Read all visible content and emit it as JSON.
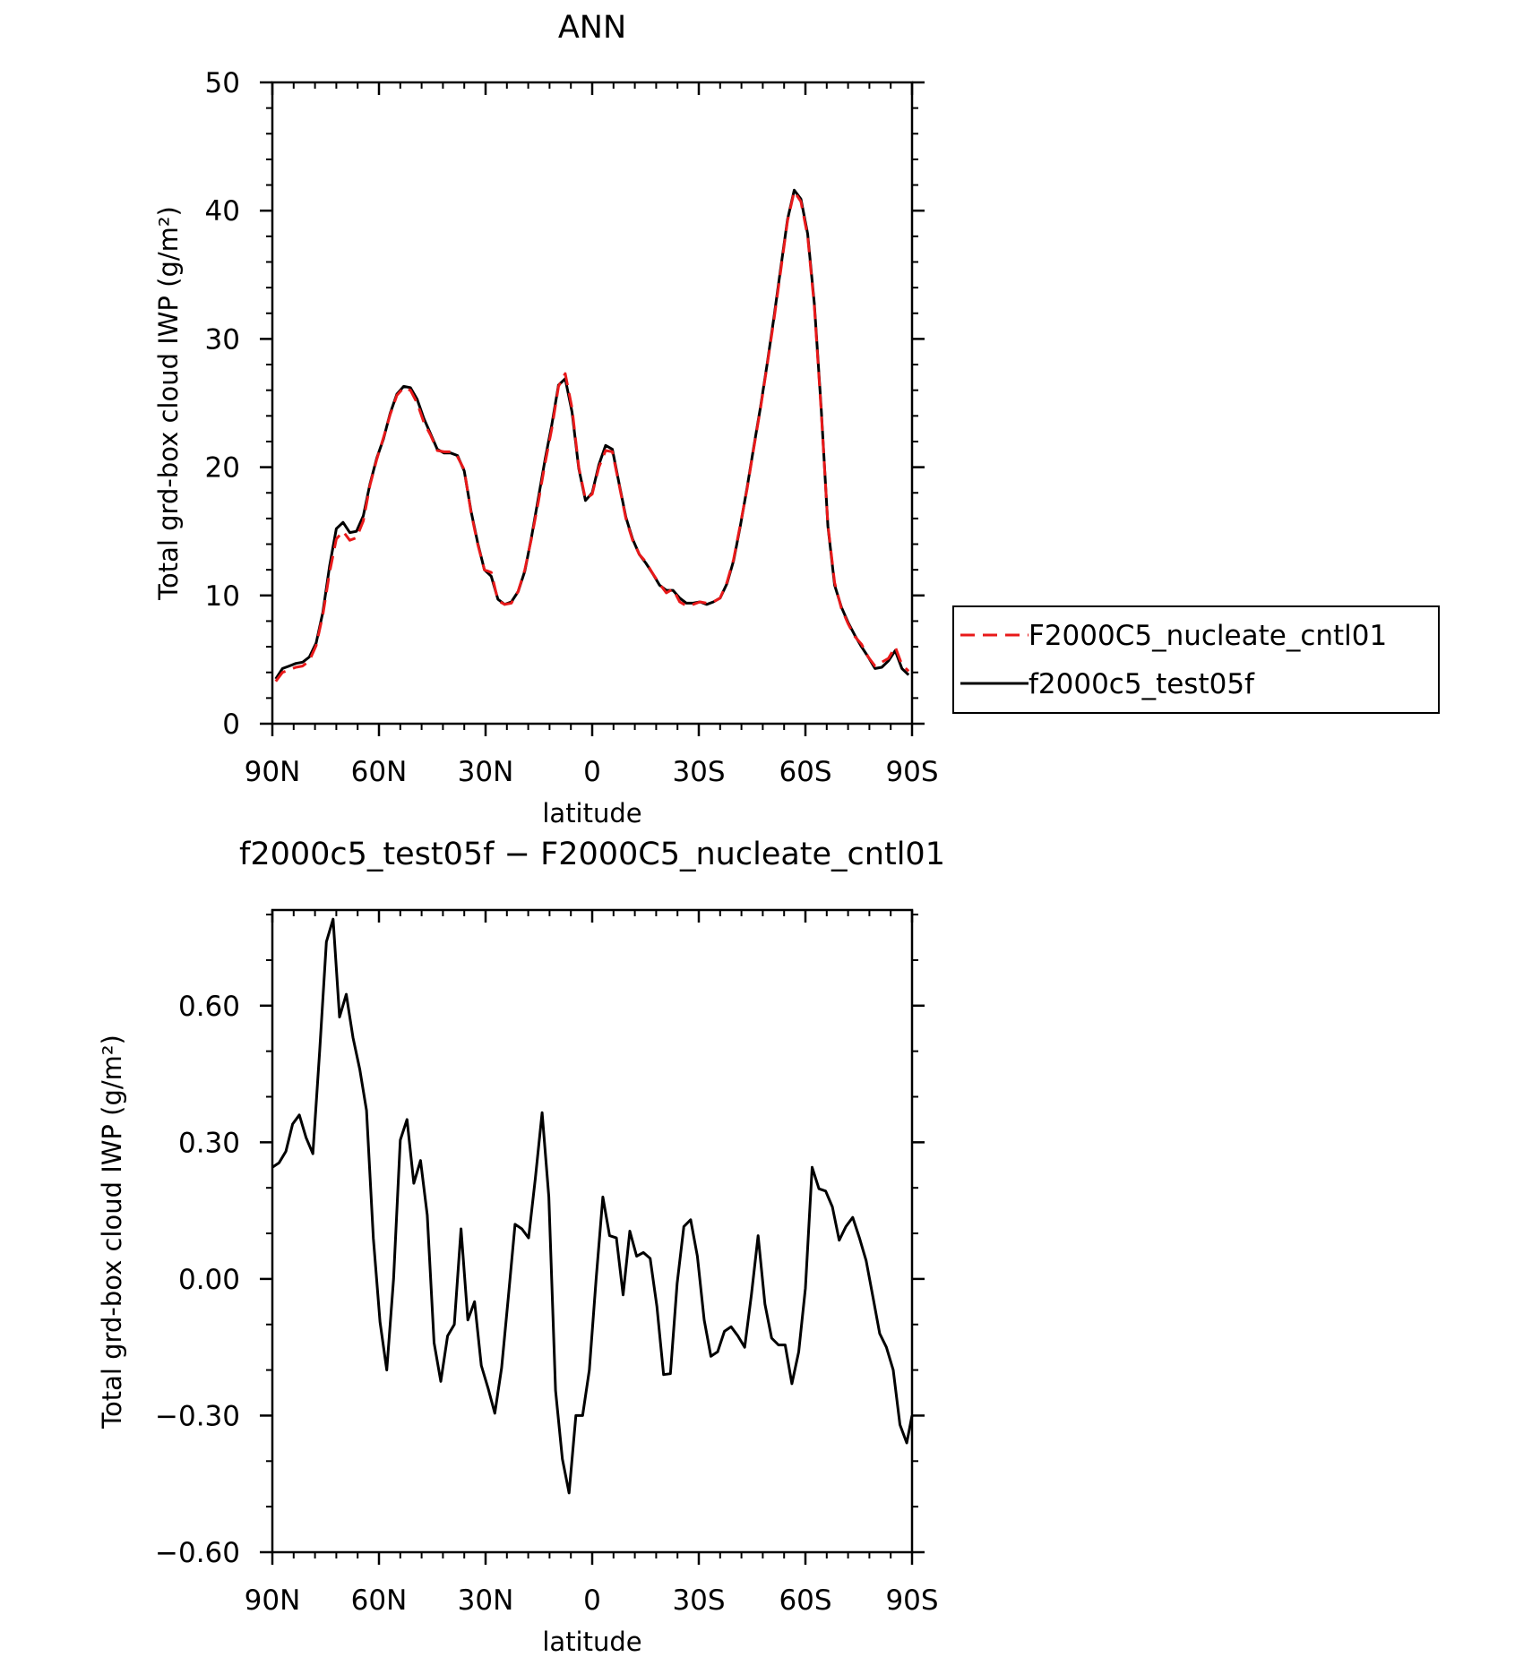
{
  "chart_data": [
    {
      "type": "line",
      "title": "ANN",
      "xlabel": "latitude",
      "ylabel": "Total grd-box cloud IWP (g/m²)",
      "xlim": [
        90,
        -90
      ],
      "ylim": [
        0,
        50
      ],
      "x_ticks": [
        90,
        60,
        30,
        0,
        -30,
        -60,
        -90
      ],
      "x_tick_labels": [
        "90N",
        "60N",
        "30N",
        "0",
        "30S",
        "60S",
        "90S"
      ],
      "y_ticks": [
        0,
        10,
        20,
        30,
        40,
        50
      ],
      "y_tick_labels": [
        "0",
        "10",
        "20",
        "30",
        "40",
        "50"
      ],
      "legend_position": "right",
      "series": [
        {
          "name": "F2000C5_nucleate_cntl01",
          "color": "#e8191a",
          "dash": "dashed",
          "x": [
            89.05,
            87.16,
            85.26,
            83.37,
            81.47,
            79.58,
            77.68,
            75.79,
            73.89,
            72.0,
            70.11,
            68.21,
            66.32,
            64.42,
            62.53,
            60.63,
            58.74,
            56.84,
            54.95,
            53.05,
            51.16,
            49.26,
            47.37,
            45.47,
            43.58,
            41.68,
            39.79,
            37.89,
            36.0,
            34.11,
            32.21,
            30.32,
            28.42,
            26.53,
            24.63,
            22.74,
            20.84,
            18.95,
            17.05,
            15.16,
            13.26,
            11.37,
            9.47,
            7.58,
            5.68,
            3.79,
            1.89,
            0.0,
            -1.89,
            -3.79,
            -5.68,
            -7.58,
            -9.47,
            -11.37,
            -13.26,
            -15.16,
            -17.05,
            -18.95,
            -20.84,
            -22.74,
            -24.63,
            -26.53,
            -28.42,
            -30.32,
            -32.21,
            -34.11,
            -36.0,
            -37.89,
            -39.79,
            -41.68,
            -43.58,
            -45.47,
            -47.37,
            -49.26,
            -51.16,
            -53.05,
            -54.95,
            -56.84,
            -58.74,
            -60.63,
            -62.53,
            -64.42,
            -66.32,
            -68.21,
            -70.11,
            -72.0,
            -73.89,
            -75.79,
            -77.68,
            -79.58,
            -81.47,
            -83.37,
            -85.26,
            -87.16,
            -89.05
          ],
          "y": [
            3.3,
            4.0,
            4.2,
            4.4,
            4.5,
            4.9,
            6.1,
            8.5,
            11.8,
            14.4,
            15.0,
            14.3,
            14.5,
            15.8,
            18.6,
            20.6,
            22.3,
            24.1,
            25.6,
            26.2,
            26.0,
            25.0,
            23.5,
            22.5,
            21.3,
            21.2,
            21.2,
            20.8,
            19.8,
            16.5,
            14.0,
            12.0,
            11.8,
            9.6,
            9.3,
            9.4,
            10.3,
            12.0,
            14.5,
            17.3,
            20.3,
            23.0,
            26.3,
            27.3,
            24.6,
            20.0,
            17.5,
            17.9,
            20.0,
            21.3,
            21.2,
            18.6,
            16.0,
            14.3,
            13.2,
            12.6,
            11.7,
            10.9,
            10.2,
            10.5,
            9.5,
            9.2,
            9.3,
            9.5,
            9.4,
            9.5,
            9.8,
            11.0,
            12.8,
            15.5,
            18.3,
            21.5,
            24.6,
            28.0,
            31.5,
            35.3,
            39.2,
            41.5,
            40.7,
            38.0,
            32.5,
            24.5,
            15.5,
            11.0,
            9.0,
            7.8,
            6.8,
            6.2,
            5.2,
            4.5,
            4.8,
            5.1,
            6.0,
            4.6,
            4.1
          ]
        },
        {
          "name": "f2000c5_test05f",
          "color": "#000000",
          "dash": "solid",
          "x": [
            89.05,
            87.16,
            85.26,
            83.37,
            81.47,
            79.58,
            77.68,
            75.79,
            73.89,
            72.0,
            70.11,
            68.21,
            66.32,
            64.42,
            62.53,
            60.63,
            58.74,
            56.84,
            54.95,
            53.05,
            51.16,
            49.26,
            47.37,
            45.47,
            43.58,
            41.68,
            39.79,
            37.89,
            36.0,
            34.11,
            32.21,
            30.32,
            28.42,
            26.53,
            24.63,
            22.74,
            20.84,
            18.95,
            17.05,
            15.16,
            13.26,
            11.37,
            9.47,
            7.58,
            5.68,
            3.79,
            1.89,
            0.0,
            -1.89,
            -3.79,
            -5.68,
            -7.58,
            -9.47,
            -11.37,
            -13.26,
            -15.16,
            -17.05,
            -18.95,
            -20.84,
            -22.74,
            -24.63,
            -26.53,
            -28.42,
            -30.32,
            -32.21,
            -34.11,
            -36.0,
            -37.89,
            -39.79,
            -41.68,
            -43.58,
            -45.47,
            -47.37,
            -49.26,
            -51.16,
            -53.05,
            -54.95,
            -56.84,
            -58.74,
            -60.63,
            -62.53,
            -64.42,
            -66.32,
            -68.21,
            -70.11,
            -72.0,
            -73.89,
            -75.79,
            -77.68,
            -79.58,
            -81.47,
            -83.37,
            -85.26,
            -87.16,
            -89.05
          ],
          "y": [
            3.5,
            4.3,
            4.5,
            4.7,
            4.8,
            5.2,
            6.3,
            8.7,
            12.3,
            15.2,
            15.7,
            14.9,
            15.0,
            16.2,
            18.7,
            20.7,
            22.2,
            24.2,
            25.7,
            26.3,
            26.2,
            25.3,
            23.8,
            22.6,
            21.4,
            21.1,
            21.1,
            20.9,
            19.7,
            16.6,
            14.1,
            12.0,
            11.5,
            9.7,
            9.3,
            9.5,
            10.3,
            11.9,
            14.6,
            17.6,
            20.6,
            23.3,
            26.4,
            26.9,
            24.3,
            19.9,
            17.4,
            18.0,
            20.2,
            21.7,
            21.4,
            18.7,
            16.1,
            14.4,
            13.2,
            12.5,
            11.7,
            10.8,
            10.4,
            10.4,
            9.8,
            9.4,
            9.4,
            9.5,
            9.3,
            9.5,
            9.8,
            10.9,
            12.7,
            15.4,
            18.4,
            21.6,
            24.7,
            28.1,
            31.7,
            35.5,
            39.3,
            41.6,
            40.9,
            38.2,
            32.7,
            24.7,
            15.4,
            10.8,
            9.1,
            7.9,
            6.9,
            6.0,
            5.2,
            4.3,
            4.4,
            4.9,
            5.7,
            4.3,
            3.8
          ]
        }
      ]
    },
    {
      "type": "line",
      "title": "f2000c5_test05f − F2000C5_nucleate_cntl01",
      "xlabel": "latitude",
      "ylabel": "Total grd-box cloud IWP (g/m²)",
      "xlim": [
        90,
        -90
      ],
      "ylim": [
        -0.6,
        0.81
      ],
      "x_ticks": [
        90,
        60,
        30,
        0,
        -30,
        -60,
        -90
      ],
      "x_tick_labels": [
        "90N",
        "60N",
        "30N",
        "0",
        "30S",
        "60S",
        "90S"
      ],
      "y_ticks": [
        -0.6,
        -0.3,
        0.0,
        0.3,
        0.6
      ],
      "y_tick_labels": [
        "−0.60",
        "−0.30",
        "0.00",
        "0.30",
        "0.60"
      ],
      "series": [
        {
          "color": "#000000",
          "dash": "solid",
          "x": [
            90.0,
            88.1,
            86.2,
            84.3,
            82.4,
            80.5,
            78.6,
            76.7,
            74.8,
            72.9,
            71.1,
            69.2,
            67.3,
            65.4,
            63.5,
            61.6,
            59.7,
            57.8,
            55.9,
            54.0,
            52.1,
            50.2,
            48.3,
            46.4,
            44.5,
            42.6,
            40.7,
            38.8,
            36.9,
            35.0,
            33.1,
            31.2,
            29.3,
            27.4,
            25.5,
            23.6,
            21.7,
            19.8,
            17.9,
            16.0,
            14.1,
            12.2,
            10.3,
            8.4,
            6.5,
            4.6,
            2.7,
            0.8,
            -1.1,
            -3.0,
            -4.9,
            -6.8,
            -8.7,
            -10.6,
            -12.5,
            -14.4,
            -16.3,
            -18.2,
            -20.1,
            -22.0,
            -23.9,
            -25.8,
            -27.7,
            -29.6,
            -31.5,
            -33.4,
            -35.3,
            -37.2,
            -39.1,
            -41.0,
            -42.9,
            -44.8,
            -46.7,
            -48.6,
            -50.5,
            -52.4,
            -54.3,
            -56.2,
            -58.1,
            -60.0,
            -61.9,
            -63.8,
            -65.7,
            -67.6,
            -69.5,
            -71.4,
            -73.3,
            -75.2,
            -77.1,
            -79.0,
            -80.9,
            -82.8,
            -84.7,
            -86.6,
            -88.5,
            -90.0
          ],
          "y": [
            0.245,
            0.255,
            0.28,
            0.34,
            0.36,
            0.31,
            0.275,
            0.5,
            0.74,
            0.79,
            0.575,
            0.625,
            0.53,
            0.46,
            0.37,
            0.09,
            -0.095,
            -0.2,
            0.0,
            0.305,
            0.35,
            0.21,
            0.26,
            0.14,
            -0.14,
            -0.225,
            -0.125,
            -0.1,
            0.11,
            -0.09,
            -0.05,
            -0.19,
            -0.24,
            -0.295,
            -0.195,
            -0.04,
            0.12,
            0.11,
            0.09,
            0.22,
            0.365,
            0.18,
            -0.245,
            -0.395,
            -0.47,
            -0.3,
            -0.3,
            -0.2,
            0.0,
            0.18,
            0.095,
            0.09,
            -0.035,
            0.105,
            0.05,
            0.058,
            0.045,
            -0.06,
            -0.21,
            -0.208,
            -0.01,
            0.115,
            0.13,
            0.05,
            -0.09,
            -0.17,
            -0.16,
            -0.115,
            -0.105,
            -0.125,
            -0.15,
            -0.035,
            0.095,
            -0.055,
            -0.13,
            -0.145,
            -0.145,
            -0.23,
            -0.16,
            -0.02,
            0.245,
            0.198,
            0.193,
            0.158,
            0.085,
            0.115,
            0.135,
            0.09,
            0.04,
            -0.04,
            -0.12,
            -0.15,
            -0.2,
            -0.32,
            -0.36,
            -0.3
          ]
        }
      ]
    }
  ]
}
